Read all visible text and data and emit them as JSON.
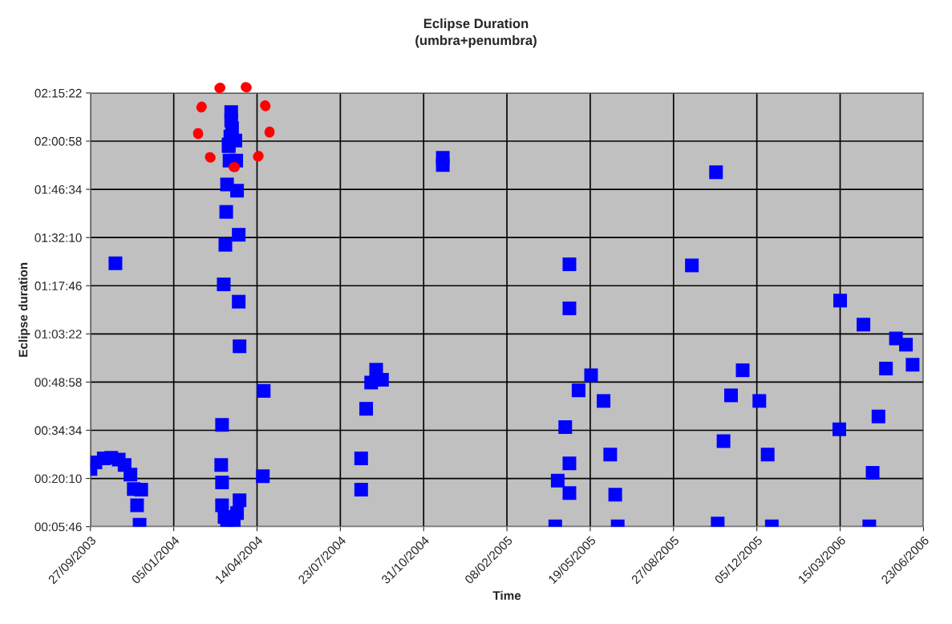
{
  "chart_data": {
    "type": "scatter",
    "title": "Eclipse Duration",
    "subtitle": "(umbra+penumbra)",
    "xlabel": "Time",
    "ylabel": "Eclipse duration",
    "x": [
      "2003-09-27",
      "2003-10-03",
      "2003-10-13",
      "2003-10-22",
      "2003-10-31",
      "2003-11-07",
      "2003-11-14",
      "2003-11-18",
      "2003-11-22",
      "2003-11-25",
      "2003-10-27",
      "2003-11-27",
      "2004-03-02",
      "2004-03-03",
      "2004-03-03",
      "2004-03-05",
      "2004-03-07",
      "2004-03-08",
      "2004-03-09",
      "2004-03-11",
      "2004-03-12",
      "2004-03-19",
      "2004-03-20",
      "2004-03-21",
      "2004-03-23",
      "2004-03-23",
      "2004-03-24",
      "2004-04-22",
      "2004-04-21",
      "2004-03-14",
      "2004-03-14",
      "2004-03-15",
      "2004-03-13",
      "2004-03-11",
      "2004-03-03",
      "2004-03-06",
      "2004-03-09",
      "2004-03-17",
      "2004-03-21",
      "2004-03-24",
      "2004-08-17",
      "2004-08-17",
      "2004-08-23",
      "2004-08-29",
      "2004-09-04",
      "2004-09-11",
      "2004-11-23",
      "2004-11-23",
      "2005-04-24",
      "2005-04-24",
      "2005-04-24",
      "2005-04-24",
      "2005-09-18",
      "2005-10-17",
      "2005-04-07",
      "2005-04-10",
      "2005-04-19",
      "2005-05-05",
      "2005-05-20",
      "2005-06-04",
      "2005-06-12",
      "2005-06-18",
      "2005-06-21",
      "2005-10-19",
      "2005-10-26",
      "2005-11-04",
      "2005-11-18",
      "2005-12-08",
      "2005-12-18",
      "2005-12-23",
      "2006-03-15",
      "2006-04-12",
      "2006-03-14",
      "2006-04-19",
      "2006-04-23",
      "2006-04-30",
      "2006-05-09",
      "2006-05-21",
      "2006-06-02",
      "2006-06-10"
    ],
    "series": [
      {
        "color": "#0000ff",
        "values": [
          1380,
          1500,
          1570,
          1580,
          1550,
          1450,
          1280,
          1020,
          730,
          380,
          5070,
          1010,
          1450,
          2170,
          1140,
          4690,
          5400,
          5990,
          6480,
          7200,
          6910,
          7270,
          6910,
          6370,
          5580,
          4380,
          3580,
          2780,
          1250,
          7780,
          7630,
          7490,
          7340,
          7170,
          730,
          520,
          380,
          420,
          590,
          820,
          1010,
          1570,
          2460,
          2930,
          3160,
          2980,
          6830,
          6960,
          5050,
          4260,
          1480,
          950,
          5030,
          6700,
          350,
          1170,
          2130,
          2790,
          3060,
          2600,
          1640,
          920,
          350,
          400,
          1880,
          2700,
          3150,
          2600,
          1640,
          350,
          4400,
          3970,
          2090,
          350,
          1310,
          2320,
          3180,
          3720,
          3610,
          3250
        ]
      }
    ],
    "marker": "square",
    "grid": true,
    "xlim": [
      "2003-09-27",
      "2006-06-23"
    ],
    "xticks": [
      {
        "value": "2003-09-27",
        "label": "27/09/2003"
      },
      {
        "value": "2004-01-05",
        "label": "05/01/2004"
      },
      {
        "value": "2004-04-14",
        "label": "14/04/2004"
      },
      {
        "value": "2004-07-23",
        "label": "23/07/2004"
      },
      {
        "value": "2004-10-31",
        "label": "31/10/2004"
      },
      {
        "value": "2005-02-08",
        "label": "08/02/2005"
      },
      {
        "value": "2005-05-19",
        "label": "19/05/2005"
      },
      {
        "value": "2005-08-27",
        "label": "27/08/2005"
      },
      {
        "value": "2005-12-05",
        "label": "05/12/2005"
      },
      {
        "value": "2006-03-15",
        "label": "15/03/2006"
      },
      {
        "value": "2006-06-23",
        "label": "23/06/2006"
      }
    ],
    "ylim": [
      346,
      8122
    ],
    "yticks": [
      {
        "value": 346,
        "label": "00:05:46"
      },
      {
        "value": 1210,
        "label": "00:20:10"
      },
      {
        "value": 2074,
        "label": "00:34:34"
      },
      {
        "value": 2938,
        "label": "00:48:58"
      },
      {
        "value": 3802,
        "label": "01:03:22"
      },
      {
        "value": 4666,
        "label": "01:17:46"
      },
      {
        "value": 5530,
        "label": "01:32:10"
      },
      {
        "value": 6394,
        "label": "01:46:34"
      },
      {
        "value": 7258,
        "label": "02:00:58"
      },
      {
        "value": 8122,
        "label": "02:15:22"
      }
    ]
  }
}
